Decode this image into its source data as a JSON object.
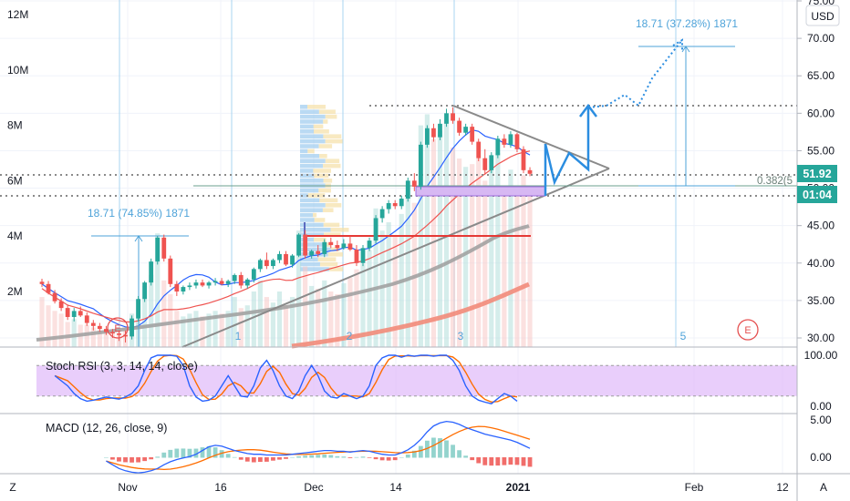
{
  "chart_data": {
    "type": "candlestick",
    "currency": "USD",
    "price_axis": {
      "min": 30,
      "max": 75,
      "ticks": [
        "75.00",
        "70.00",
        "65.00",
        "60.00",
        "55.00",
        "50.00",
        "45.00",
        "40.00",
        "35.00",
        "30.00"
      ]
    },
    "volume_axis": {
      "ticks": [
        "12M",
        "10M",
        "8M",
        "6M",
        "4M",
        "2M"
      ],
      "values": [
        12000000,
        10000000,
        8000000,
        6000000,
        4000000,
        2000000
      ]
    },
    "time_labels": [
      "Nov",
      "16",
      "Dec",
      "14",
      "2021",
      "Feb",
      "12"
    ],
    "last_price": "51.92",
    "countdown": "01:04",
    "fib_label": "0.382(5",
    "wave_labels": [
      "1",
      "2",
      "3",
      "5"
    ],
    "event_markers": [
      "E",
      "E"
    ],
    "projection_1": "18.71 (74.85%) 1871",
    "projection_2": "18.71 (37.28%) 1871",
    "candles": [
      [
        37.5,
        37.9,
        36.8,
        37.2
      ],
      [
        37.2,
        37.6,
        35.8,
        36.0
      ],
      [
        36.0,
        36.4,
        34.6,
        34.9
      ],
      [
        34.9,
        35.3,
        33.6,
        34.0
      ],
      [
        34.0,
        34.4,
        32.4,
        32.8
      ],
      [
        32.8,
        34.0,
        32.2,
        33.6
      ],
      [
        33.6,
        34.2,
        32.8,
        33.0
      ],
      [
        33.0,
        33.4,
        31.6,
        32.0
      ],
      [
        32.0,
        32.4,
        31.0,
        31.6
      ],
      [
        31.6,
        32.0,
        30.8,
        31.2
      ],
      [
        31.2,
        31.6,
        30.4,
        30.8
      ],
      [
        30.8,
        31.2,
        30.0,
        30.6
      ],
      [
        30.6,
        31.0,
        29.6,
        30.4
      ],
      [
        30.4,
        31.0,
        29.4,
        30.2
      ],
      [
        30.2,
        33.0,
        29.8,
        32.6
      ],
      [
        32.6,
        35.6,
        32.2,
        35.2
      ],
      [
        35.2,
        37.6,
        34.8,
        37.4
      ],
      [
        37.4,
        40.6,
        37.0,
        40.2
      ],
      [
        40.2,
        43.6,
        39.8,
        43.4
      ],
      [
        43.4,
        43.8,
        40.2,
        40.6
      ],
      [
        40.6,
        41.0,
        36.8,
        37.2
      ],
      [
        37.2,
        37.6,
        35.6,
        36.2
      ],
      [
        36.2,
        37.0,
        35.8,
        36.8
      ],
      [
        36.8,
        37.4,
        36.4,
        37.0
      ],
      [
        37.0,
        37.8,
        36.6,
        37.4
      ],
      [
        37.4,
        37.8,
        36.8,
        37.0
      ],
      [
        37.0,
        37.6,
        36.6,
        37.4
      ],
      [
        37.4,
        38.0,
        37.0,
        37.6
      ],
      [
        37.6,
        38.0,
        37.0,
        37.2
      ],
      [
        37.2,
        37.8,
        36.8,
        37.6
      ],
      [
        37.6,
        38.6,
        37.2,
        38.4
      ],
      [
        38.4,
        38.8,
        36.6,
        37.0
      ],
      [
        37.0,
        38.0,
        36.6,
        37.8
      ],
      [
        37.8,
        39.4,
        37.4,
        39.2
      ],
      [
        39.2,
        40.6,
        38.8,
        40.4
      ],
      [
        40.4,
        41.4,
        39.2,
        39.6
      ],
      [
        39.6,
        40.6,
        39.2,
        40.4
      ],
      [
        40.4,
        41.6,
        40.0,
        41.2
      ],
      [
        41.2,
        41.6,
        39.6,
        39.8
      ],
      [
        39.8,
        41.2,
        39.4,
        41.0
      ],
      [
        41.0,
        44.0,
        40.8,
        43.8
      ],
      [
        43.8,
        44.4,
        40.6,
        41.0
      ],
      [
        41.0,
        41.8,
        40.6,
        41.6
      ],
      [
        41.6,
        42.4,
        40.8,
        41.2
      ],
      [
        41.2,
        43.2,
        40.8,
        42.8
      ],
      [
        42.8,
        43.4,
        42.0,
        42.4
      ],
      [
        42.4,
        43.0,
        41.6,
        42.0
      ],
      [
        42.0,
        43.2,
        41.8,
        42.6
      ],
      [
        42.6,
        43.6,
        41.6,
        41.8
      ],
      [
        41.8,
        42.4,
        39.6,
        40.0
      ],
      [
        40.0,
        42.4,
        39.6,
        42.0
      ],
      [
        42.0,
        43.4,
        41.6,
        43.0
      ],
      [
        43.0,
        46.4,
        42.6,
        46.0
      ],
      [
        46.0,
        47.6,
        45.4,
        47.2
      ],
      [
        47.2,
        48.4,
        46.6,
        48.0
      ],
      [
        48.0,
        48.4,
        47.2,
        47.6
      ],
      [
        47.6,
        49.0,
        47.2,
        48.6
      ],
      [
        48.6,
        51.4,
        48.2,
        51.0
      ],
      [
        51.0,
        52.0,
        49.6,
        50.2
      ],
      [
        50.2,
        56.2,
        49.8,
        55.8
      ],
      [
        55.8,
        58.4,
        55.4,
        58.0
      ],
      [
        58.0,
        58.6,
        56.2,
        56.8
      ],
      [
        56.8,
        59.2,
        56.4,
        58.6
      ],
      [
        58.6,
        60.6,
        58.2,
        60.0
      ],
      [
        60.0,
        60.8,
        58.6,
        59.0
      ],
      [
        59.0,
        59.4,
        57.0,
        57.4
      ],
      [
        57.4,
        58.6,
        57.0,
        58.2
      ],
      [
        58.2,
        58.6,
        55.8,
        56.2
      ],
      [
        56.2,
        56.6,
        53.6,
        54.0
      ],
      [
        54.0,
        55.2,
        51.8,
        52.4
      ],
      [
        52.4,
        54.8,
        52.0,
        54.4
      ],
      [
        54.4,
        57.0,
        54.0,
        56.6
      ],
      [
        56.6,
        57.2,
        55.4,
        55.8
      ],
      [
        55.8,
        57.6,
        55.4,
        57.2
      ],
      [
        57.2,
        57.4,
        54.8,
        55.2
      ],
      [
        55.2,
        55.6,
        52.0,
        52.4
      ],
      [
        52.4,
        52.8,
        51.6,
        51.92
      ]
    ],
    "volume": [
      1.8,
      1.5,
      1.3,
      1.2,
      0.9,
      1.0,
      0.8,
      0.8,
      0.7,
      0.6,
      0.6,
      0.5,
      0.5,
      0.6,
      1.2,
      1.7,
      2.2,
      2.6,
      4.1,
      2.4,
      1.9,
      1.3,
      1.1,
      1.2,
      1.3,
      1.1,
      1.2,
      1.3,
      1.2,
      1.3,
      1.8,
      1.4,
      1.5,
      2.0,
      2.4,
      1.8,
      1.6,
      2.0,
      1.5,
      1.8,
      4.2,
      2.9,
      2.2,
      2.1,
      2.4,
      2.0,
      1.9,
      2.3,
      2.5,
      2.8,
      3.0,
      3.5,
      5.0,
      4.2,
      4.5,
      4.0,
      4.8,
      5.8,
      5.2,
      8.0,
      8.4,
      7.5,
      7.8,
      8.2,
      7.2,
      6.8,
      6.5,
      6.6,
      6.8,
      6.0,
      6.4,
      7.0,
      5.8,
      6.4,
      5.8,
      6.2,
      5.6
    ],
    "stoch_rsi": {
      "label": "Stoch RSI (3, 3, 14, 14, close)",
      "ticks": [
        "100.00",
        "0.00"
      ]
    },
    "macd": {
      "label": "MACD (12, 26, close, 9)",
      "ticks": [
        "5.00",
        "0.00"
      ]
    }
  },
  "ui": {
    "timezone_btn": "Z",
    "auto_btn": "A",
    "currency_label": "USD"
  }
}
